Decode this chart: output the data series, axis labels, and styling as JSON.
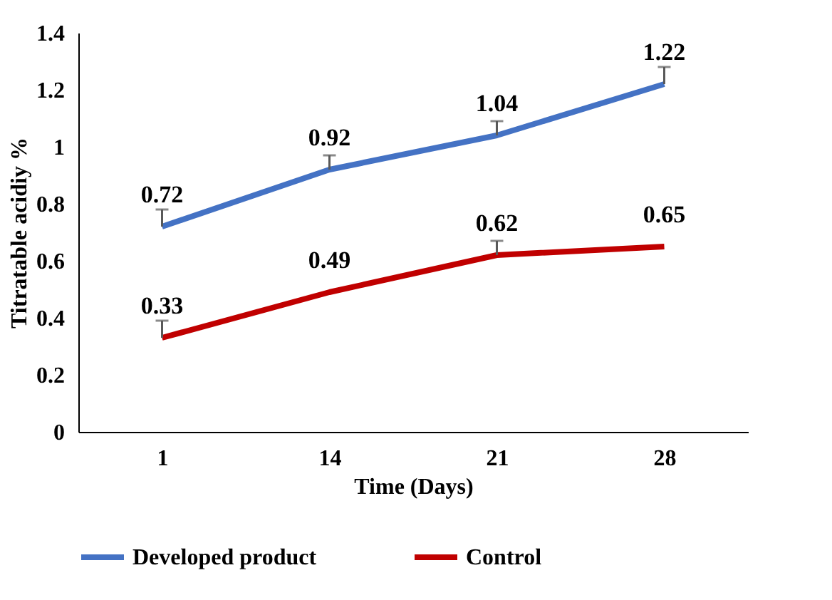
{
  "chart_data": {
    "type": "line",
    "xlabel": "Time (Days)",
    "ylabel": "Titratable acidiy %",
    "categories": [
      "1",
      "14",
      "21",
      "28"
    ],
    "series": [
      {
        "name": "Developed product",
        "color": "#4472c4",
        "values": [
          0.72,
          0.92,
          1.04,
          1.22
        ],
        "errors": [
          [
            0.72,
            0.78
          ],
          [
            0.92,
            0.97
          ],
          [
            1.04,
            1.09
          ],
          [
            1.22,
            1.28
          ]
        ]
      },
      {
        "name": "Control",
        "color": "#c00000",
        "values": [
          0.33,
          0.49,
          0.62,
          0.65
        ],
        "errors": [
          [
            0.33,
            0.39
          ],
          null,
          [
            0.62,
            0.67
          ],
          null
        ]
      }
    ],
    "ylim": [
      0,
      1.4
    ],
    "yticks": [
      0,
      0.2,
      0.4,
      0.6,
      0.8,
      1,
      1.2,
      1.4
    ],
    "grid": false,
    "legend": "bottom",
    "data_labels": true,
    "marker": "none",
    "line_style": "solid"
  }
}
